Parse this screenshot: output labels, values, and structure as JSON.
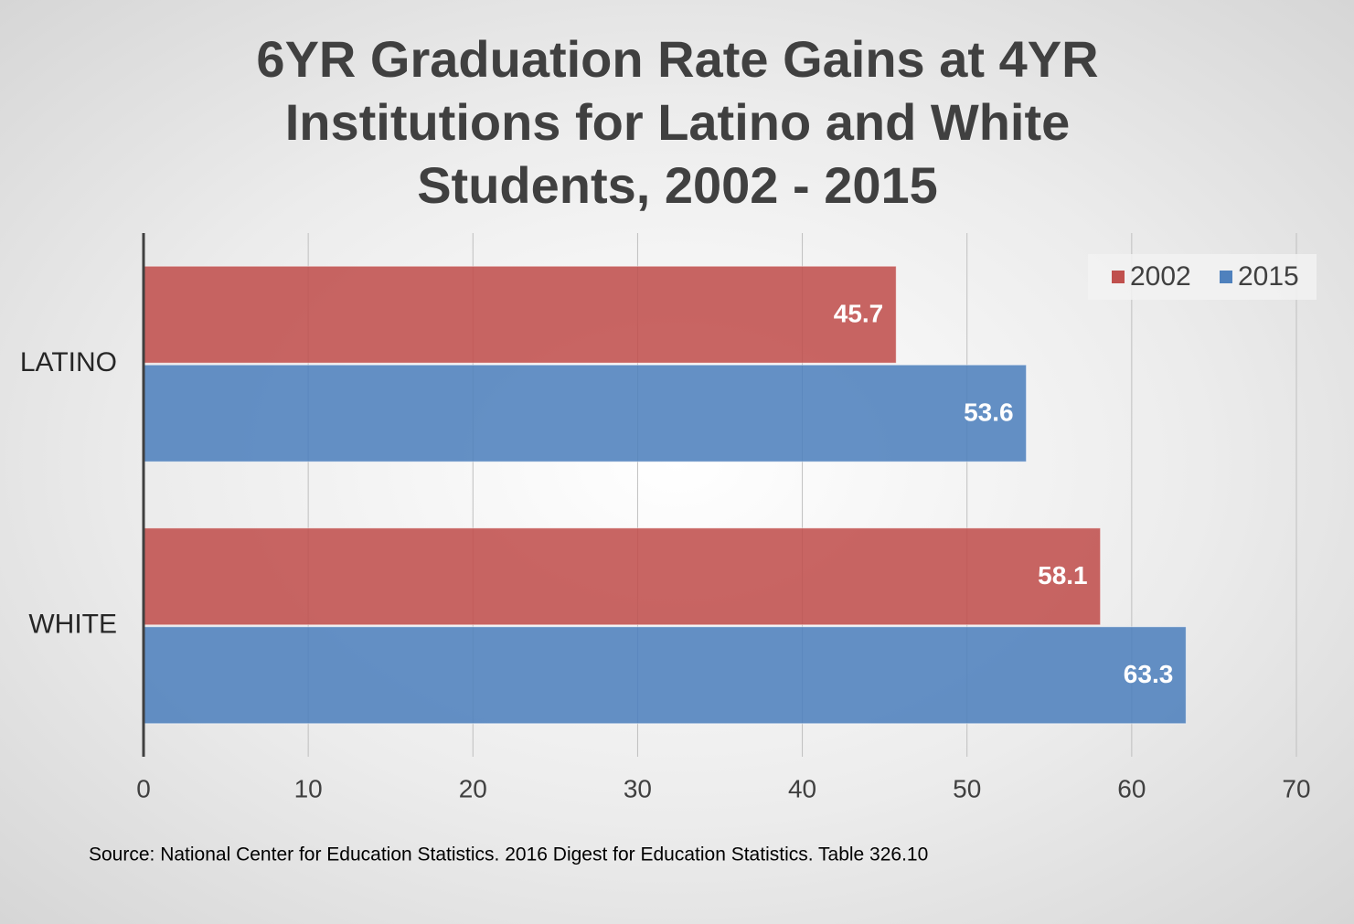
{
  "chart_data": {
    "type": "bar",
    "orientation": "horizontal",
    "title": "6YR Graduation Rate Gains at 4YR Institutions for Latino and White Students, 2002 - 2015",
    "categories": [
      "LATINO",
      "WHITE"
    ],
    "series": [
      {
        "name": "2002",
        "color": "#c0504d",
        "values": [
          45.7,
          58.1
        ]
      },
      {
        "name": "2015",
        "color": "#4f81bd",
        "values": [
          53.6,
          63.3
        ]
      }
    ],
    "xlim": [
      0,
      70
    ],
    "xticks": [
      0,
      10,
      20,
      30,
      40,
      50,
      60,
      70
    ],
    "grid": true,
    "legend": "top-right",
    "source": "Source: National Center for Education Statistics. 2016 Digest for Education Statistics. Table 326.10"
  }
}
